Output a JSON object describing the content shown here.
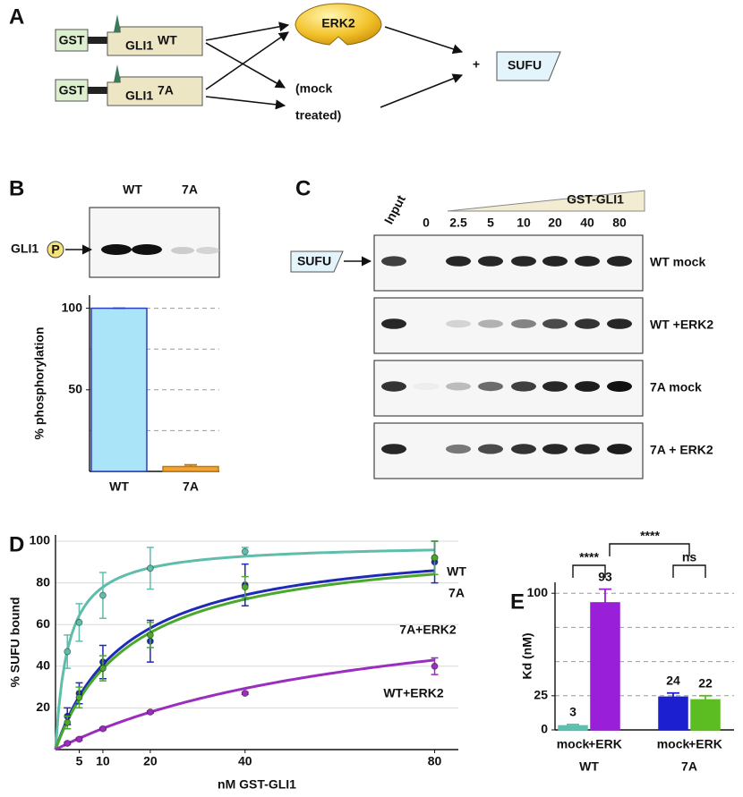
{
  "panel_labels": [
    "A",
    "B",
    "C",
    "D",
    "E"
  ],
  "diagram": {
    "constructs": [
      {
        "tag": "GST",
        "protein": "GLI1",
        "variant": "WT"
      },
      {
        "tag": "GST",
        "protein": "GLI1",
        "variant": "7A"
      }
    ],
    "kinase": "ERK2",
    "mock": [
      "(mock",
      "treated)"
    ],
    "plus": "+",
    "partner": "SUFU"
  },
  "blot_b": {
    "lanes": [
      "WT",
      "7A"
    ],
    "band": "GLI1",
    "mark": "P"
  },
  "blot_c": {
    "input": "Input",
    "concentrations": [
      0,
      2.5,
      5,
      10,
      20,
      40,
      80
    ],
    "titrant": "GST-GLI1",
    "probe": "SUFU",
    "rows": [
      "WT mock",
      "WT +ERK2",
      "7A mock",
      "7A + ERK2"
    ]
  },
  "chart_data": [
    {
      "type": "bar",
      "ylabel": "% phosphorylation",
      "categories": [
        "WT",
        "7A"
      ],
      "values": [
        100,
        3
      ],
      "errors": [
        0,
        1
      ],
      "colors": [
        "#a9e4f8",
        "#f0a436"
      ],
      "edge_colors": [
        "#2a3fb8",
        "#c07a10"
      ],
      "ylim": [
        0,
        108
      ],
      "yticks": [
        50,
        100
      ],
      "gridlines": [
        25,
        50,
        75,
        100
      ]
    },
    {
      "type": "scatter",
      "xlabel": "nM GST-GLI1",
      "ylabel": "% SUFU bound",
      "xlim": [
        0,
        85
      ],
      "xticks": [
        5,
        10,
        20,
        40,
        80
      ],
      "ylim": [
        0,
        103
      ],
      "yticks": [
        20,
        40,
        60,
        80,
        100
      ],
      "grid": true,
      "series": [
        {
          "name": "WT",
          "color": "#5fbdab",
          "x": [
            2.5,
            5,
            10,
            20,
            40,
            80
          ],
          "values": [
            47,
            61,
            74,
            87,
            95,
            92
          ],
          "errors": [
            8,
            9,
            11,
            10,
            2,
            8
          ],
          "fit": {
            "bmax": 99,
            "kd": 2.7
          }
        },
        {
          "name": "7A",
          "color": "#1f2ab8",
          "x": [
            2.5,
            5,
            10,
            20,
            40,
            80
          ],
          "values": [
            16,
            27,
            42,
            52,
            79,
            90
          ],
          "errors": [
            4,
            5,
            8,
            10,
            10,
            10
          ],
          "fit": {
            "bmax": 102,
            "kd": 15
          }
        },
        {
          "name": "7A+ERK2",
          "color": "#4aa82a",
          "x": [
            2.5,
            5,
            10,
            20,
            40,
            80
          ],
          "values": [
            13,
            25,
            39,
            55,
            78,
            92
          ],
          "errors": [
            3,
            5,
            6,
            6,
            5,
            8
          ],
          "fit": {
            "bmax": 101,
            "kd": 16
          }
        },
        {
          "name": "WT+ERK2",
          "color": "#9b2dbf",
          "x": [
            2.5,
            5,
            10,
            20,
            40,
            80
          ],
          "values": [
            3,
            5,
            10,
            18,
            27,
            40
          ],
          "errors": [
            0.5,
            0.5,
            0.5,
            0.5,
            0.5,
            4
          ],
          "fit": {
            "bmax": 80,
            "kd": 69
          }
        }
      ]
    },
    {
      "type": "bar",
      "ylabel": "Kd (nM)",
      "categories": [
        "mock",
        "+ERK",
        "mock",
        "+ERK"
      ],
      "groups": [
        "WT",
        "7A"
      ],
      "values": [
        3,
        93,
        24,
        22
      ],
      "errors": [
        1,
        10,
        3,
        3
      ],
      "colors": [
        "#5cc0b0",
        "#9a1fd8",
        "#1c1fcf",
        "#5bbd22"
      ],
      "ylim": [
        0,
        108
      ],
      "yticks": [
        0,
        25,
        100
      ],
      "gridlines": [
        25,
        50,
        75,
        100
      ],
      "significance": [
        "****",
        "****",
        "ns"
      ]
    }
  ]
}
